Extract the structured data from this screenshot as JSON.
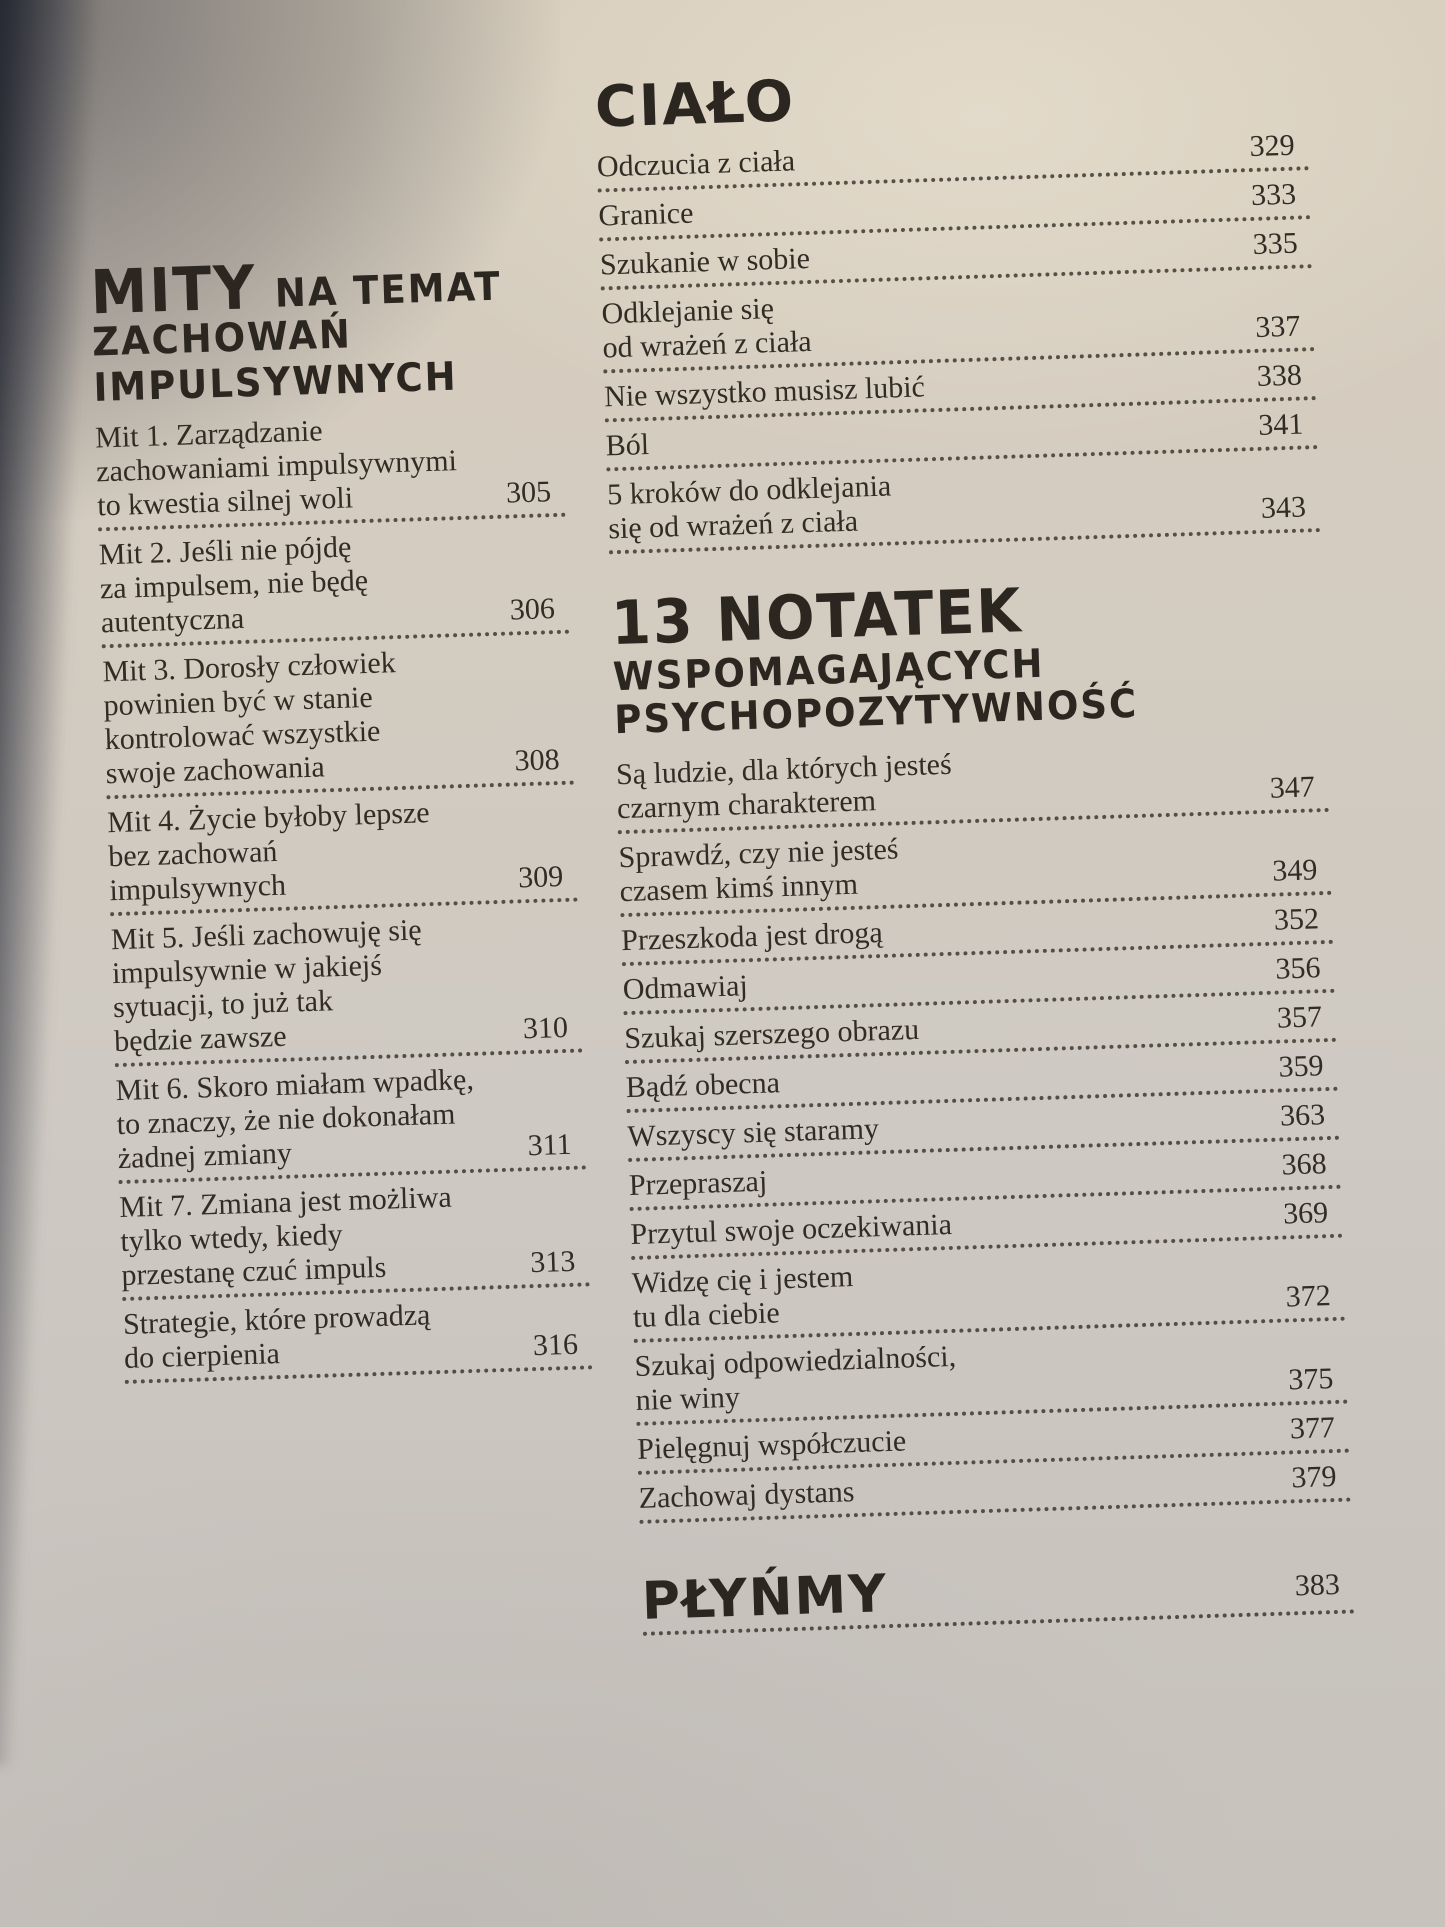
{
  "colors": {
    "paper": "#d2cbc0",
    "ink": "#2f2b24",
    "background_edge": "#2e313a"
  },
  "left": {
    "title_big": "MITY",
    "title_small": "NA TEMAT",
    "title_line2": "ZACHOWAŃ IMPULSYWNYCH",
    "entries": [
      {
        "lines": [
          "Mit 1. Zarządzanie",
          "zachowaniami impulsywnymi",
          "to kwestia silnej woli"
        ],
        "page": "305"
      },
      {
        "lines": [
          "Mit 2. Jeśli nie pójdę",
          "za impulsem, nie będę",
          "autentyczna"
        ],
        "page": "306"
      },
      {
        "lines": [
          "Mit 3. Dorosły człowiek",
          "powinien być w stanie",
          "kontrolować wszystkie",
          "swoje zachowania"
        ],
        "page": "308"
      },
      {
        "lines": [
          "Mit 4. Życie byłoby lepsze",
          "bez zachowań",
          "impulsywnych"
        ],
        "page": "309"
      },
      {
        "lines": [
          "Mit 5. Jeśli zachowuję się",
          "impulsywnie w jakiejś",
          "sytuacji, to już tak",
          "będzie zawsze"
        ],
        "page": "310"
      },
      {
        "lines": [
          "Mit 6. Skoro miałam wpadkę,",
          "to znaczy, że nie dokonałam",
          "żadnej zmiany"
        ],
        "page": "311"
      },
      {
        "lines": [
          "Mit 7. Zmiana jest możliwa",
          "tylko wtedy, kiedy",
          "przestanę czuć impuls"
        ],
        "page": "313"
      },
      {
        "lines": [
          "Strategie, które prowadzą",
          "do cierpienia"
        ],
        "page": "316"
      }
    ]
  },
  "cialo": {
    "title": "CIAŁO",
    "entries": [
      {
        "lines": [
          "Odczucia z ciała"
        ],
        "page": "329"
      },
      {
        "lines": [
          "Granice"
        ],
        "page": "333"
      },
      {
        "lines": [
          "Szukanie w sobie"
        ],
        "page": "335"
      },
      {
        "lines": [
          "Odklejanie się",
          "od wrażeń z ciała"
        ],
        "page": "337"
      },
      {
        "lines": [
          "Nie wszystko musisz lubić"
        ],
        "page": "338"
      },
      {
        "lines": [
          "Ból"
        ],
        "page": "341"
      },
      {
        "lines": [
          "5 kroków do odklejania",
          "się od wrażeń z ciała"
        ],
        "page": "343"
      }
    ]
  },
  "notatek": {
    "title_line1": "13 NOTATEK",
    "title_line2": "WSPOMAGAJĄCYCH",
    "title_line3": "PSYCHOPOZYTYWNOŚĆ",
    "entries": [
      {
        "lines": [
          "Są ludzie, dla których jesteś",
          "czarnym charakterem"
        ],
        "page": "347"
      },
      {
        "lines": [
          "Sprawdź, czy nie jesteś",
          "czasem kimś innym"
        ],
        "page": "349"
      },
      {
        "lines": [
          "Przeszkoda jest drogą"
        ],
        "page": "352"
      },
      {
        "lines": [
          "Odmawiaj"
        ],
        "page": "356"
      },
      {
        "lines": [
          "Szukaj szerszego obrazu"
        ],
        "page": "357"
      },
      {
        "lines": [
          "Bądź obecna"
        ],
        "page": "359"
      },
      {
        "lines": [
          "Wszyscy się staramy"
        ],
        "page": "363"
      },
      {
        "lines": [
          "Przepraszaj"
        ],
        "page": "368"
      },
      {
        "lines": [
          "Przytul swoje oczekiwania"
        ],
        "page": "369"
      },
      {
        "lines": [
          "Widzę cię i jestem",
          "tu dla ciebie"
        ],
        "page": "372"
      },
      {
        "lines": [
          "Szukaj odpowiedzialności,",
          "nie winy"
        ],
        "page": "375"
      },
      {
        "lines": [
          "Pielęgnuj współczucie"
        ],
        "page": "377"
      },
      {
        "lines": [
          "Zachowaj dystans"
        ],
        "page": "379"
      }
    ]
  },
  "plynmy": {
    "title": "PŁYŃMY",
    "page": "383"
  }
}
